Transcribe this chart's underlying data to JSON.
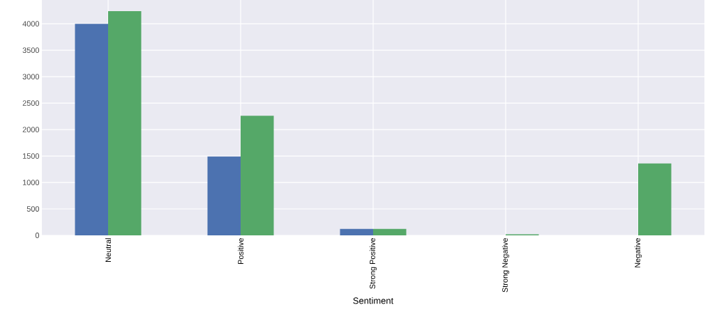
{
  "chart_data": {
    "type": "bar",
    "xlabel": "Sentiment",
    "categories": [
      "Neutral",
      "Positive",
      "Strong Positive",
      "Strong Negative",
      "Negative"
    ],
    "series": [
      {
        "color": "#4c72b0",
        "values": [
          4000,
          1490,
          120,
          0,
          0
        ]
      },
      {
        "color": "#55a868",
        "values": [
          4240,
          2260,
          120,
          20,
          1360
        ]
      }
    ],
    "ylim": [
      0,
      4450
    ],
    "yticks": [
      0,
      500,
      1000,
      1500,
      2000,
      2500,
      3000,
      3500,
      4000
    ],
    "grid": true
  }
}
